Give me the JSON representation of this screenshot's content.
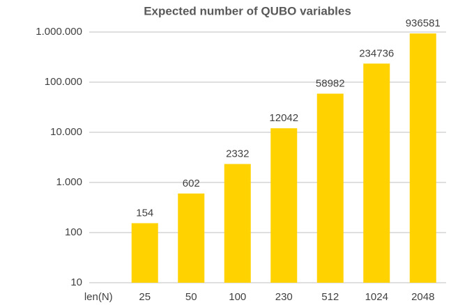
{
  "chart_data": {
    "type": "bar",
    "title": "Expected number of QUBO variables",
    "categories": [
      "len(N)",
      "25",
      "50",
      "100",
      "230",
      "512",
      "1024",
      "2048"
    ],
    "values": [
      null,
      154,
      602,
      2332,
      12042,
      58982,
      234736,
      936581
    ],
    "color": "#ffd200",
    "log_scale": true,
    "ylim": [
      10,
      1000000
    ],
    "yticks": [
      10,
      100,
      {
        "value": 1000,
        "label": "1.000"
      },
      {
        "value": 10000,
        "label": "10.000"
      },
      {
        "value": 100000,
        "label": "100.000"
      },
      {
        "value": 1000000,
        "label": "1.000.000"
      }
    ],
    "grid": true
  }
}
